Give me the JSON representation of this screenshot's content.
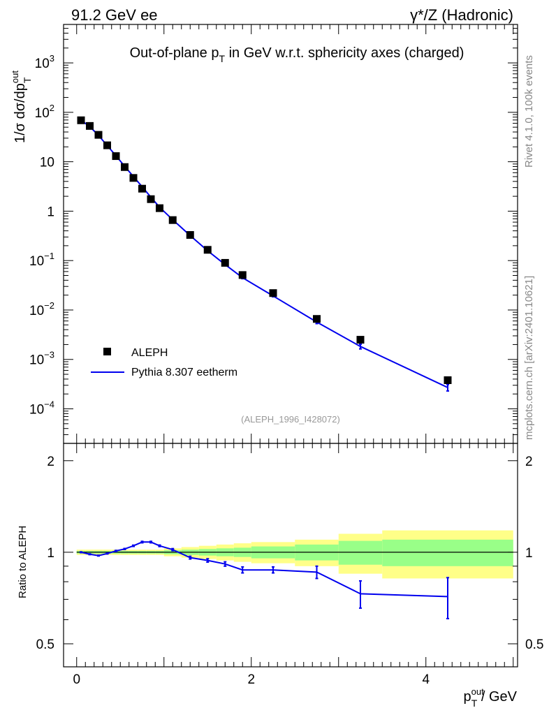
{
  "header": {
    "left": "91.2 GeV ee",
    "right": "γ*/Z (Hadronic)"
  },
  "side_labels": {
    "upper": "Rivet 4.1.0,  100k events",
    "lower": "mcplots.cern.ch [arXiv:2401.10621]"
  },
  "colors": {
    "data": "#000000",
    "mc": "#0000ee",
    "band_outer": "#ffff88",
    "band_inner": "#99ff88"
  },
  "chart_data": [
    {
      "type": "scatter",
      "panel": "main",
      "title": "Out-of-plane p_T in GeV w.r.t. sphericity axes (charged)",
      "title_parts": {
        "pre": "Out-of-plane p",
        "sub": "T",
        "post": " in GeV w.r.t. sphericity axes (charged)"
      },
      "ylabel": "1/σ  dσ/dp_T^out",
      "ylabel_parts": {
        "main": "1/σ   dσ/dp",
        "sup": "out",
        "sub": "T"
      },
      "yscale": "log",
      "xlim": [
        -0.15,
        5.05
      ],
      "ylim": [
        2e-05,
        6000
      ],
      "ref_label": "(ALEPH_1996_I428072)",
      "yticks": [
        {
          "value": 0.0001,
          "label": "10",
          "exp": "−4"
        },
        {
          "value": 0.001,
          "label": "10",
          "exp": "−3"
        },
        {
          "value": 0.01,
          "label": "10",
          "exp": "−2"
        },
        {
          "value": 0.1,
          "label": "10",
          "exp": "−1"
        },
        {
          "value": 1,
          "label": "1",
          "exp": ""
        },
        {
          "value": 10,
          "label": "10",
          "exp": ""
        },
        {
          "value": 100,
          "label": "10",
          "exp": "2"
        },
        {
          "value": 1000,
          "label": "10",
          "exp": "3"
        }
      ],
      "legend": {
        "position": "lower-left",
        "entries": [
          {
            "label": "ALEPH",
            "style": "marker"
          },
          {
            "label": "Pythia 8.307 eetherm",
            "style": "line"
          }
        ]
      },
      "series": [
        {
          "name": "ALEPH",
          "x": [
            0.05,
            0.15,
            0.25,
            0.35,
            0.45,
            0.55,
            0.65,
            0.75,
            0.85,
            0.95,
            1.1,
            1.3,
            1.5,
            1.7,
            1.9,
            2.25,
            2.75,
            3.25,
            4.25
          ],
          "y": [
            69,
            53,
            35,
            21.5,
            13,
            7.8,
            4.7,
            2.85,
            1.75,
            1.15,
            0.66,
            0.33,
            0.165,
            0.09,
            0.051,
            0.022,
            0.0066,
            0.0025,
            0.00038
          ]
        },
        {
          "name": "Pythia 8.307 eetherm",
          "x": [
            0.05,
            0.15,
            0.25,
            0.35,
            0.45,
            0.55,
            0.65,
            0.75,
            0.85,
            0.95,
            1.1,
            1.3,
            1.5,
            1.7,
            1.9,
            2.25,
            2.75,
            3.25,
            4.25
          ],
          "y": [
            69,
            52,
            34,
            21.3,
            13.2,
            8.1,
            5.0,
            3.12,
            1.92,
            1.2,
            0.67,
            0.32,
            0.158,
            0.083,
            0.045,
            0.0193,
            0.0057,
            0.00183,
            0.00027
          ],
          "yerr": [
            0,
            0,
            0,
            0,
            0,
            0,
            0,
            0,
            0,
            0,
            0,
            0,
            0,
            0.002,
            0.002,
            0.0008,
            0.0004,
            0.0002,
            4e-05
          ]
        }
      ]
    },
    {
      "type": "line",
      "panel": "ratio",
      "xlabel": "p_T^out / GeV",
      "xlabel_parts": {
        "main": "p",
        "sup": "out",
        "sub": "T",
        "post": " / GeV"
      },
      "ylabel": "Ratio to ALEPH",
      "xlim": [
        -0.15,
        5.05
      ],
      "ylim": [
        0.42,
        2.28
      ],
      "yticks": [
        {
          "value": 0.5,
          "label": "0.5"
        },
        {
          "value": 1,
          "label": "1"
        },
        {
          "value": 2,
          "label": "2"
        }
      ],
      "xticks": [
        {
          "value": 0,
          "label": "0"
        },
        {
          "value": 2,
          "label": "2"
        },
        {
          "value": 4,
          "label": "4"
        }
      ],
      "bands": {
        "edges": [
          0,
          0.1,
          0.2,
          0.3,
          0.4,
          0.5,
          0.6,
          0.7,
          0.8,
          0.9,
          1.0,
          1.2,
          1.4,
          1.6,
          1.8,
          2.0,
          2.5,
          3.0,
          3.5,
          5.0
        ],
        "outer": [
          0.02,
          0.02,
          0.02,
          0.02,
          0.02,
          0.02,
          0.02,
          0.02,
          0.02,
          0.02,
          0.03,
          0.04,
          0.05,
          0.06,
          0.07,
          0.08,
          0.1,
          0.15,
          0.18,
          0.22
        ],
        "inner": [
          0.01,
          0.01,
          0.01,
          0.01,
          0.01,
          0.01,
          0.01,
          0.01,
          0.01,
          0.01,
          0.015,
          0.02,
          0.025,
          0.03,
          0.035,
          0.045,
          0.06,
          0.09,
          0.1,
          0.12
        ]
      },
      "series": [
        {
          "name": "Pythia 8.307 eetherm / ALEPH",
          "x": [
            0.05,
            0.15,
            0.25,
            0.35,
            0.45,
            0.55,
            0.65,
            0.75,
            0.85,
            0.95,
            1.1,
            1.3,
            1.5,
            1.7,
            1.9,
            2.25,
            2.75,
            3.25,
            4.25
          ],
          "y": [
            1.0,
            0.985,
            0.975,
            0.99,
            1.01,
            1.025,
            1.05,
            1.08,
            1.08,
            1.05,
            1.02,
            0.96,
            0.94,
            0.915,
            0.875,
            0.875,
            0.86,
            0.73,
            0.715
          ],
          "yerr": [
            0.003,
            0.003,
            0.003,
            0.003,
            0.004,
            0.004,
            0.005,
            0.006,
            0.006,
            0.006,
            0.008,
            0.01,
            0.012,
            0.015,
            0.02,
            0.02,
            0.04,
            0.075,
            0.11
          ]
        }
      ]
    }
  ]
}
